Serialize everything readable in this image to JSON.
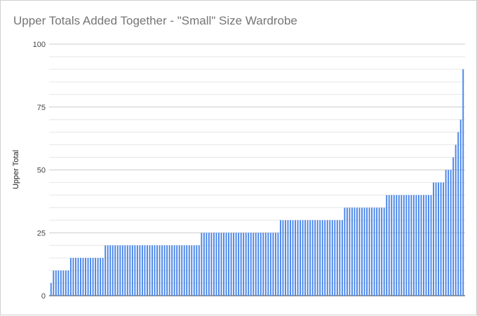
{
  "chart_data": {
    "type": "bar",
    "title": "Upper Totals Added Together - \"Small\" Size Wardrobe",
    "xlabel": "",
    "ylabel": "Upper Total",
    "ylim": [
      0,
      100
    ],
    "yticks": [
      "0",
      "25",
      "50",
      "75",
      "100"
    ],
    "grid": true,
    "series_color": "#4a86e8",
    "values": [
      5,
      10,
      10,
      10,
      10,
      10,
      10,
      10,
      15,
      15,
      15,
      15,
      15,
      15,
      15,
      15,
      15,
      15,
      15,
      15,
      15,
      15,
      20,
      20,
      20,
      20,
      20,
      20,
      20,
      20,
      20,
      20,
      20,
      20,
      20,
      20,
      20,
      20,
      20,
      20,
      20,
      20,
      20,
      20,
      20,
      20,
      20,
      20,
      20,
      20,
      20,
      20,
      20,
      20,
      20,
      20,
      20,
      20,
      20,
      20,
      20,
      25,
      25,
      25,
      25,
      25,
      25,
      25,
      25,
      25,
      25,
      25,
      25,
      25,
      25,
      25,
      25,
      25,
      25,
      25,
      25,
      25,
      25,
      25,
      25,
      25,
      25,
      25,
      25,
      25,
      25,
      25,
      25,
      30,
      30,
      30,
      30,
      30,
      30,
      30,
      30,
      30,
      30,
      30,
      30,
      30,
      30,
      30,
      30,
      30,
      30,
      30,
      30,
      30,
      30,
      30,
      30,
      30,
      30,
      35,
      35,
      35,
      35,
      35,
      35,
      35,
      35,
      35,
      35,
      35,
      35,
      35,
      35,
      35,
      35,
      35,
      40,
      40,
      40,
      40,
      40,
      40,
      40,
      40,
      40,
      40,
      40,
      40,
      40,
      40,
      40,
      40,
      40,
      40,
      40,
      45,
      45,
      45,
      45,
      45,
      50,
      50,
      50,
      55,
      60,
      65,
      70,
      90
    ]
  }
}
